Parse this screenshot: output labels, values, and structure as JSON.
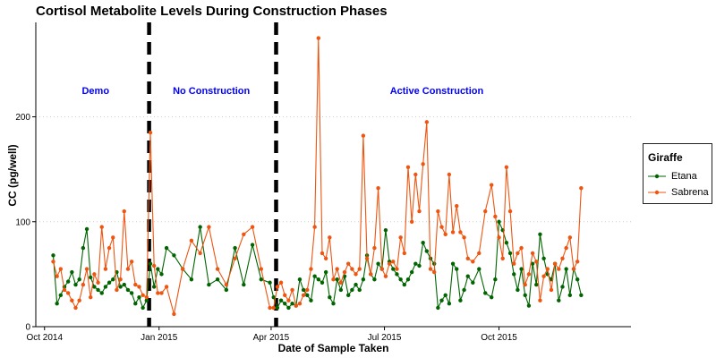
{
  "chart_data": {
    "type": "line",
    "title": "Cortisol Metabolite Levels During Construction Phases",
    "xlabel": "Date of Sample Taken",
    "ylabel": "CC (pg/well)",
    "x_tick_labels": [
      "Oct 2014",
      "Jan 2015",
      "Apr 2015",
      "Jul 2015",
      "Oct 2015"
    ],
    "x_tick_dates": [
      "2014-10-01",
      "2015-01-01",
      "2015-04-01",
      "2015-07-01",
      "2015-10-01"
    ],
    "xlim": [
      "2014-09-24",
      "2016-01-15"
    ],
    "y_ticks": [
      0,
      100,
      200
    ],
    "ylim": [
      0,
      290
    ],
    "grid": "horizontal dotted",
    "phase_dividers": [
      "2014-12-24",
      "2015-04-05"
    ],
    "phase_labels": [
      {
        "text": "Demo",
        "date": "2014-11-11",
        "y": 225
      },
      {
        "text": "No Construction",
        "date": "2015-02-12",
        "y": 225
      },
      {
        "text": "Active Construction",
        "date": "2015-08-12",
        "y": 225
      }
    ],
    "legend_title": "Giraffe",
    "legend_position": "right",
    "series": [
      {
        "name": "Etana",
        "color": "#006400",
        "dates": [
          "2014-10-08",
          "2014-10-11",
          "2014-10-14",
          "2014-10-17",
          "2014-10-20",
          "2014-10-23",
          "2014-10-26",
          "2014-10-29",
          "2014-11-01",
          "2014-11-04",
          "2014-11-07",
          "2014-11-10",
          "2014-11-13",
          "2014-11-16",
          "2014-11-19",
          "2014-11-22",
          "2014-11-25",
          "2014-11-28",
          "2014-12-01",
          "2014-12-04",
          "2014-12-07",
          "2014-12-10",
          "2014-12-13",
          "2014-12-16",
          "2014-12-19",
          "2014-12-22",
          "2014-12-25",
          "2014-12-28",
          "2014-12-31",
          "2015-01-03",
          "2015-01-07",
          "2015-01-13",
          "2015-01-20",
          "2015-01-27",
          "2015-02-03",
          "2015-02-10",
          "2015-02-17",
          "2015-02-24",
          "2015-03-03",
          "2015-03-10",
          "2015-03-17",
          "2015-03-24",
          "2015-03-31",
          "2015-04-03",
          "2015-04-06",
          "2015-04-09",
          "2015-04-12",
          "2015-04-15",
          "2015-04-18",
          "2015-04-21",
          "2015-04-24",
          "2015-04-27",
          "2015-04-30",
          "2015-05-03",
          "2015-05-06",
          "2015-05-09",
          "2015-05-12",
          "2015-05-15",
          "2015-05-18",
          "2015-05-21",
          "2015-05-24",
          "2015-05-27",
          "2015-05-30",
          "2015-06-02",
          "2015-06-05",
          "2015-06-08",
          "2015-06-11",
          "2015-06-14",
          "2015-06-17",
          "2015-06-20",
          "2015-06-23",
          "2015-06-26",
          "2015-06-29",
          "2015-07-02",
          "2015-07-05",
          "2015-07-08",
          "2015-07-11",
          "2015-07-14",
          "2015-07-17",
          "2015-07-20",
          "2015-07-23",
          "2015-07-26",
          "2015-07-29",
          "2015-08-01",
          "2015-08-04",
          "2015-08-07",
          "2015-08-10",
          "2015-08-13",
          "2015-08-16",
          "2015-08-19",
          "2015-08-22",
          "2015-08-25",
          "2015-08-28",
          "2015-08-31",
          "2015-09-03",
          "2015-09-06",
          "2015-09-10",
          "2015-09-15",
          "2015-09-20",
          "2015-09-25",
          "2015-09-28",
          "2015-10-01",
          "2015-10-04",
          "2015-10-07",
          "2015-10-10",
          "2015-10-13",
          "2015-10-16",
          "2015-10-19",
          "2015-10-22",
          "2015-10-25",
          "2015-10-28",
          "2015-10-31",
          "2015-11-03",
          "2015-11-06",
          "2015-11-09",
          "2015-11-12",
          "2015-11-15",
          "2015-11-18",
          "2015-11-21",
          "2015-11-24",
          "2015-11-27",
          "2015-11-30",
          "2015-12-03",
          "2015-12-06"
        ],
        "values": [
          68,
          22,
          30,
          38,
          43,
          52,
          40,
          45,
          75,
          93,
          47,
          38,
          35,
          32,
          38,
          42,
          45,
          52,
          38,
          40,
          35,
          32,
          22,
          28,
          18,
          25,
          60,
          38,
          55,
          50,
          75,
          68,
          55,
          45,
          95,
          40,
          45,
          35,
          75,
          40,
          78,
          45,
          42,
          28,
          18,
          25,
          22,
          18,
          22,
          20,
          45,
          35,
          30,
          25,
          48,
          45,
          42,
          52,
          28,
          22,
          45,
          35,
          48,
          30,
          35,
          40,
          35,
          45,
          68,
          50,
          45,
          60,
          55,
          92,
          62,
          55,
          50,
          45,
          40,
          45,
          52,
          60,
          58,
          80,
          72,
          65,
          60,
          18,
          25,
          30,
          22,
          60,
          55,
          25,
          35,
          48,
          42,
          55,
          32,
          28,
          45,
          100,
          92,
          80,
          70,
          50,
          35,
          55,
          30,
          20,
          60,
          40,
          88,
          65,
          50,
          45,
          60,
          25,
          38,
          55,
          30,
          55,
          45,
          30
        ]
      },
      {
        "name": "Sabrena",
        "color": "#EE5511",
        "dates": [
          "2014-10-08",
          "2014-10-11",
          "2014-10-14",
          "2014-10-17",
          "2014-10-20",
          "2014-10-23",
          "2014-10-26",
          "2014-10-29",
          "2014-11-01",
          "2014-11-04",
          "2014-11-07",
          "2014-11-10",
          "2014-11-13",
          "2014-11-16",
          "2014-11-19",
          "2014-11-22",
          "2014-11-25",
          "2014-11-28",
          "2014-12-01",
          "2014-12-04",
          "2014-12-07",
          "2014-12-10",
          "2014-12-13",
          "2014-12-16",
          "2014-12-19",
          "2014-12-22",
          "2014-12-25",
          "2014-12-28",
          "2014-12-31",
          "2015-01-03",
          "2015-01-07",
          "2015-01-13",
          "2015-01-20",
          "2015-01-27",
          "2015-02-03",
          "2015-02-10",
          "2015-02-17",
          "2015-02-24",
          "2015-03-03",
          "2015-03-10",
          "2015-03-17",
          "2015-03-24",
          "2015-03-31",
          "2015-04-03",
          "2015-04-06",
          "2015-04-09",
          "2015-04-12",
          "2015-04-15",
          "2015-04-18",
          "2015-04-21",
          "2015-04-24",
          "2015-04-27",
          "2015-04-30",
          "2015-05-03",
          "2015-05-06",
          "2015-05-09",
          "2015-05-12",
          "2015-05-15",
          "2015-05-18",
          "2015-05-21",
          "2015-05-24",
          "2015-05-27",
          "2015-05-30",
          "2015-06-02",
          "2015-06-05",
          "2015-06-08",
          "2015-06-11",
          "2015-06-14",
          "2015-06-17",
          "2015-06-20",
          "2015-06-23",
          "2015-06-26",
          "2015-06-29",
          "2015-07-02",
          "2015-07-05",
          "2015-07-08",
          "2015-07-11",
          "2015-07-14",
          "2015-07-17",
          "2015-07-20",
          "2015-07-23",
          "2015-07-26",
          "2015-07-29",
          "2015-08-01",
          "2015-08-04",
          "2015-08-07",
          "2015-08-10",
          "2015-08-13",
          "2015-08-16",
          "2015-08-19",
          "2015-08-22",
          "2015-08-25",
          "2015-08-28",
          "2015-08-31",
          "2015-09-03",
          "2015-09-06",
          "2015-09-10",
          "2015-09-15",
          "2015-09-20",
          "2015-09-25",
          "2015-09-28",
          "2015-10-01",
          "2015-10-04",
          "2015-10-07",
          "2015-10-10",
          "2015-10-13",
          "2015-10-16",
          "2015-10-19",
          "2015-10-22",
          "2015-10-25",
          "2015-10-28",
          "2015-10-31",
          "2015-11-03",
          "2015-11-06",
          "2015-11-09",
          "2015-11-12",
          "2015-11-15",
          "2015-11-18",
          "2015-11-21",
          "2015-11-24",
          "2015-11-27",
          "2015-11-30",
          "2015-12-03",
          "2015-12-06"
        ],
        "values": [
          62,
          48,
          55,
          35,
          32,
          25,
          18,
          25,
          40,
          55,
          28,
          50,
          42,
          95,
          55,
          75,
          85,
          35,
          45,
          110,
          55,
          62,
          40,
          38,
          30,
          28,
          185,
          58,
          32,
          32,
          38,
          12,
          55,
          82,
          70,
          95,
          55,
          40,
          65,
          88,
          95,
          55,
          18,
          18,
          38,
          42,
          30,
          25,
          35,
          20,
          22,
          30,
          35,
          55,
          95,
          275,
          70,
          65,
          85,
          45,
          55,
          42,
          52,
          60,
          55,
          50,
          55,
          182,
          65,
          50,
          75,
          132,
          55,
          48,
          60,
          62,
          55,
          85,
          70,
          152,
          100,
          145,
          110,
          155,
          195,
          55,
          52,
          110,
          95,
          88,
          145,
          90,
          115,
          90,
          85,
          65,
          62,
          70,
          110,
          135,
          105,
          85,
          65,
          152,
          110,
          60,
          70,
          75,
          40,
          50,
          70,
          62,
          25,
          48,
          55,
          35,
          60,
          55,
          65,
          75,
          85,
          55,
          62,
          132
        ]
      }
    ]
  }
}
